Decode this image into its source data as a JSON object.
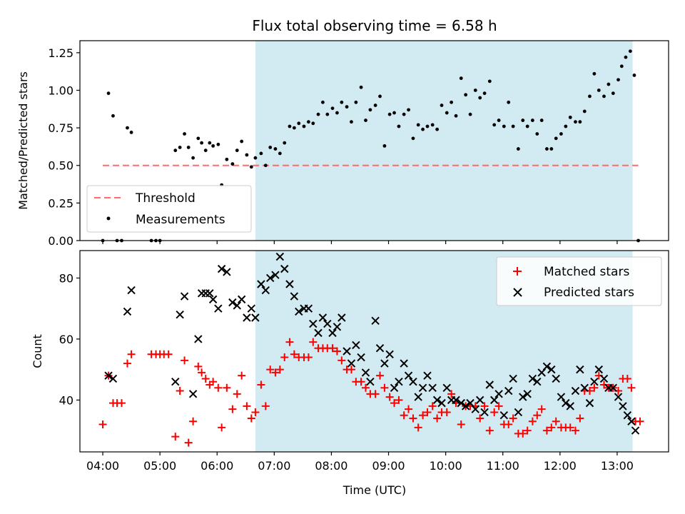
{
  "title": "Flux total observing time = 6.58 h",
  "xlabel": "Time (UTC)",
  "x_ticks": [
    "04:00",
    "05:00",
    "06:00",
    "07:00",
    "08:00",
    "09:00",
    "10:00",
    "11:00",
    "12:00",
    "13:00"
  ],
  "colors": {
    "shade": "#add8e6",
    "threshold": "#ff6b6b",
    "measurements": "#000000",
    "matched": "#ff0000",
    "predicted": "#000000"
  },
  "chart_data": [
    {
      "type": "scatter",
      "panel": "top",
      "ylabel": "Matched/Predicted stars",
      "xlim_hours": [
        3.6,
        13.9
      ],
      "ylim": [
        0.0,
        1.33
      ],
      "yticks": [
        "0.00",
        "0.25",
        "0.50",
        "0.75",
        "1.00",
        "1.25"
      ],
      "shaded_span_hours": [
        6.67,
        13.27
      ],
      "threshold": {
        "label": "Threshold",
        "value": 0.5,
        "x_range_hours": [
          4.0,
          13.37
        ]
      },
      "legend": {
        "position": "lower-left",
        "entries": [
          "Threshold",
          "Measurements"
        ]
      },
      "series": [
        {
          "name": "Measurements",
          "x_hours": [
            4.0,
            4.1,
            4.18,
            4.25,
            4.33,
            4.43,
            4.5,
            4.85,
            4.93,
            5.0,
            5.27,
            5.35,
            5.43,
            5.5,
            5.58,
            5.67,
            5.73,
            5.8,
            5.87,
            5.93,
            6.02,
            6.08,
            6.17,
            6.27,
            6.35,
            6.43,
            6.52,
            6.6,
            6.67,
            6.77,
            6.85,
            6.93,
            7.02,
            7.1,
            7.18,
            7.27,
            7.35,
            7.43,
            7.52,
            7.6,
            7.68,
            7.77,
            7.85,
            7.93,
            8.02,
            8.1,
            8.18,
            8.27,
            8.35,
            8.43,
            8.52,
            8.6,
            8.68,
            8.77,
            8.85,
            8.93,
            9.02,
            9.1,
            9.18,
            9.27,
            9.35,
            9.43,
            9.52,
            9.6,
            9.68,
            9.77,
            9.85,
            9.93,
            10.02,
            10.1,
            10.18,
            10.27,
            10.35,
            10.43,
            10.52,
            10.6,
            10.68,
            10.77,
            10.85,
            10.93,
            11.02,
            11.1,
            11.18,
            11.27,
            11.35,
            11.43,
            11.52,
            11.6,
            11.68,
            11.77,
            11.85,
            11.93,
            12.02,
            12.1,
            12.18,
            12.27,
            12.35,
            12.43,
            12.52,
            12.6,
            12.68,
            12.77,
            12.85,
            12.93,
            13.02,
            13.08,
            13.15,
            13.23,
            13.3,
            13.37
          ],
          "y": [
            0.0,
            0.98,
            0.83,
            0.0,
            0.0,
            0.75,
            0.72,
            0.0,
            0.0,
            0.0,
            0.6,
            0.62,
            0.71,
            0.62,
            0.55,
            0.68,
            0.65,
            0.6,
            0.65,
            0.63,
            0.64,
            0.37,
            0.54,
            0.51,
            0.6,
            0.66,
            0.57,
            0.49,
            0.55,
            0.58,
            0.5,
            0.62,
            0.61,
            0.58,
            0.65,
            0.76,
            0.75,
            0.78,
            0.76,
            0.79,
            0.78,
            0.84,
            0.92,
            0.84,
            0.88,
            0.85,
            0.92,
            0.89,
            0.79,
            0.92,
            1.02,
            0.8,
            0.87,
            0.9,
            0.96,
            0.63,
            0.84,
            0.85,
            0.76,
            0.84,
            0.87,
            0.68,
            0.77,
            0.74,
            0.76,
            0.77,
            0.74,
            0.9,
            0.85,
            0.92,
            0.83,
            1.08,
            0.97,
            0.84,
            1.0,
            0.95,
            0.98,
            1.06,
            0.77,
            0.8,
            0.76,
            0.92,
            0.76,
            0.61,
            0.8,
            0.76,
            0.8,
            0.71,
            0.8,
            0.61,
            0.61,
            0.68,
            0.71,
            0.76,
            0.82,
            0.79,
            0.79,
            0.86,
            0.96,
            1.11,
            1.0,
            0.96,
            1.04,
            0.98,
            1.07,
            1.16,
            1.22,
            1.26,
            1.1,
            0.0
          ]
        }
      ]
    },
    {
      "type": "scatter",
      "panel": "bottom",
      "ylabel": "Count",
      "xlim_hours": [
        3.6,
        13.9
      ],
      "ylim": [
        23,
        89
      ],
      "yticks": [
        "40",
        "60",
        "80"
      ],
      "shaded_span_hours": [
        6.67,
        13.27
      ],
      "legend": {
        "position": "upper-right",
        "entries": [
          "Matched stars",
          "Predicted stars"
        ]
      },
      "series": [
        {
          "name": "Matched stars",
          "marker": "plus",
          "x_hours": [
            4.0,
            4.1,
            4.18,
            4.25,
            4.33,
            4.43,
            4.5,
            4.85,
            4.93,
            5.0,
            5.07,
            5.15,
            5.27,
            5.35,
            5.43,
            5.5,
            5.58,
            5.67,
            5.73,
            5.8,
            5.87,
            5.93,
            6.02,
            6.08,
            6.17,
            6.27,
            6.35,
            6.43,
            6.52,
            6.6,
            6.67,
            6.77,
            6.85,
            6.93,
            7.02,
            7.1,
            7.18,
            7.27,
            7.35,
            7.43,
            7.52,
            7.6,
            7.68,
            7.77,
            7.85,
            7.93,
            8.02,
            8.1,
            8.18,
            8.27,
            8.35,
            8.43,
            8.52,
            8.6,
            8.68,
            8.77,
            8.85,
            8.93,
            9.02,
            9.1,
            9.18,
            9.27,
            9.35,
            9.43,
            9.52,
            9.6,
            9.68,
            9.77,
            9.85,
            9.93,
            10.02,
            10.1,
            10.18,
            10.27,
            10.35,
            10.43,
            10.52,
            10.6,
            10.68,
            10.77,
            10.85,
            10.93,
            11.02,
            11.1,
            11.18,
            11.27,
            11.35,
            11.43,
            11.52,
            11.6,
            11.68,
            11.77,
            11.85,
            11.93,
            12.02,
            12.1,
            12.18,
            12.27,
            12.35,
            12.43,
            12.52,
            12.6,
            12.68,
            12.77,
            12.85,
            12.93,
            13.02,
            13.1,
            13.18,
            13.25,
            13.32,
            13.4
          ],
          "y": [
            32,
            48,
            39,
            39,
            39,
            52,
            55,
            55,
            55,
            55,
            55,
            55,
            28,
            43,
            53,
            26,
            33,
            51,
            49,
            47,
            45,
            46,
            44,
            31,
            44,
            37,
            42,
            48,
            38,
            34,
            36,
            45,
            38,
            50,
            49,
            50,
            54,
            59,
            55,
            54,
            54,
            54,
            59,
            57,
            57,
            57,
            57,
            56,
            53,
            50,
            50,
            46,
            46,
            44,
            42,
            42,
            48,
            44,
            41,
            39,
            40,
            35,
            37,
            34,
            31,
            35,
            36,
            38,
            34,
            36,
            36,
            42,
            39,
            32,
            38,
            38,
            38,
            34,
            38,
            30,
            36,
            38,
            32,
            32,
            34,
            29,
            29,
            30,
            33,
            35,
            37,
            30,
            31,
            33,
            31,
            31,
            31,
            30,
            34,
            43,
            43,
            44,
            48,
            45,
            44,
            44,
            43,
            47,
            47,
            44,
            33,
            33
          ]
        },
        {
          "name": "Predicted stars",
          "marker": "x",
          "x_hours": [
            4.1,
            4.18,
            4.43,
            4.5,
            5.27,
            5.35,
            5.43,
            5.58,
            5.67,
            5.73,
            5.8,
            5.87,
            5.93,
            6.02,
            6.08,
            6.17,
            6.27,
            6.35,
            6.43,
            6.52,
            6.6,
            6.67,
            6.77,
            6.85,
            6.93,
            7.02,
            7.1,
            7.18,
            7.27,
            7.35,
            7.43,
            7.52,
            7.6,
            7.68,
            7.77,
            7.85,
            7.93,
            8.02,
            8.1,
            8.18,
            8.27,
            8.35,
            8.43,
            8.52,
            8.6,
            8.68,
            8.77,
            8.85,
            8.93,
            9.02,
            9.1,
            9.18,
            9.27,
            9.35,
            9.43,
            9.52,
            9.6,
            9.68,
            9.77,
            9.85,
            9.93,
            10.02,
            10.1,
            10.18,
            10.27,
            10.35,
            10.43,
            10.52,
            10.6,
            10.68,
            10.77,
            10.85,
            10.93,
            11.02,
            11.1,
            11.18,
            11.27,
            11.35,
            11.43,
            11.52,
            11.6,
            11.68,
            11.77,
            11.85,
            11.93,
            12.02,
            12.1,
            12.18,
            12.27,
            12.35,
            12.43,
            12.52,
            12.6,
            12.68,
            12.77,
            12.85,
            12.93,
            13.02,
            13.1,
            13.18,
            13.25,
            13.32
          ],
          "y": [
            48,
            47,
            69,
            76,
            46,
            68,
            74,
            42,
            60,
            75,
            75,
            75,
            73,
            70,
            83,
            82,
            72,
            71,
            73,
            67,
            70,
            67,
            78,
            76,
            80,
            81,
            87,
            83,
            78,
            74,
            69,
            70,
            70,
            65,
            62,
            67,
            65,
            62,
            64,
            67,
            56,
            52,
            58,
            54,
            49,
            46,
            66,
            57,
            52,
            55,
            44,
            46,
            52,
            48,
            46,
            41,
            44,
            48,
            44,
            40,
            39,
            44,
            40,
            40,
            39,
            38,
            39,
            37,
            40,
            36,
            45,
            40,
            42,
            35,
            43,
            47,
            36,
            41,
            42,
            47,
            46,
            49,
            51,
            50,
            47,
            41,
            39,
            38,
            43,
            50,
            44,
            39,
            46,
            50,
            47,
            44,
            44,
            41,
            38,
            35,
            33,
            30
          ]
        }
      ]
    }
  ]
}
